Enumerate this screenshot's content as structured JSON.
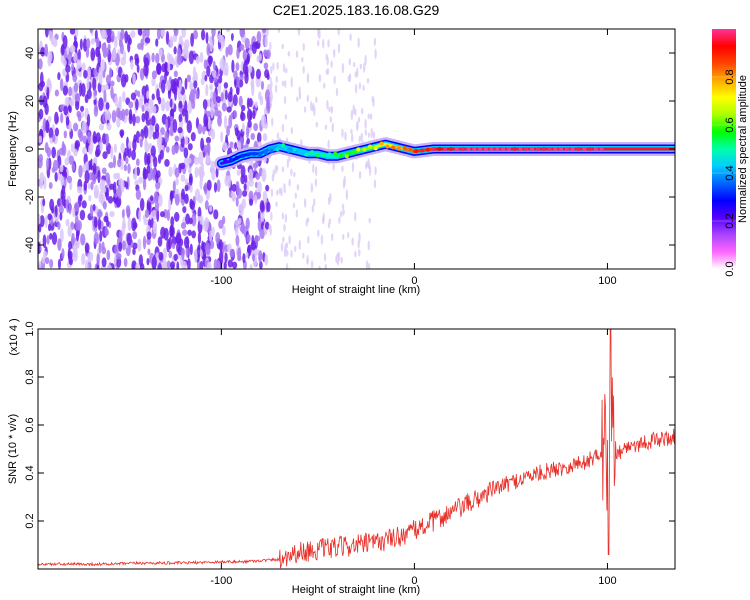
{
  "title": "C2E1.2025.183.16.08.G29",
  "chart_data": [
    {
      "type": "heatmap",
      "xlabel": "Height of straight line (km)",
      "ylabel": "Frequency (Hz)",
      "xlim": [
        -195,
        135
      ],
      "ylim": [
        -50,
        50
      ],
      "xticks": [
        -100,
        0,
        100
      ],
      "xtick_labels": [
        "-100",
        "0",
        "100"
      ],
      "yticks": [
        -40,
        -20,
        0,
        20,
        40
      ],
      "ytick_labels": [
        "-40",
        "-20",
        "0",
        "20",
        "40"
      ],
      "colorbar": {
        "label": "Normalized spectral amplitude",
        "range": [
          0,
          1
        ],
        "ticks": [
          0.0,
          0.2,
          0.4,
          0.6,
          0.8
        ],
        "tick_labels": [
          "0.0",
          "0.2",
          "0.4",
          "0.6",
          "0.8"
        ],
        "colors": [
          "#ffffff",
          "#ff66ff",
          "#aa44ff",
          "#5500ff",
          "#0000ff",
          "#0066ff",
          "#00ccff",
          "#00ffaa",
          "#00ff00",
          "#aaff00",
          "#ffff00",
          "#ffaa00",
          "#ff4400",
          "#ff0000",
          "#ff3399"
        ]
      },
      "grid": false,
      "signal_track": {
        "x": [
          -100,
          -95,
          -90,
          -85,
          -80,
          -75,
          -70,
          -65,
          -60,
          -55,
          -50,
          -45,
          -40,
          -35,
          -30,
          -25,
          -20,
          -15,
          -10,
          -5,
          0,
          10,
          20,
          40,
          60,
          80,
          100,
          135
        ],
        "frequency": [
          -6,
          -5,
          -3,
          -2,
          -2,
          0,
          1,
          0,
          -1,
          -2,
          -2,
          -3,
          -3,
          -2,
          -1,
          0,
          1,
          2,
          1,
          0,
          -1,
          0,
          0,
          0,
          0,
          0,
          0,
          0
        ],
        "amplitude": [
          0.2,
          0.25,
          0.3,
          0.3,
          0.35,
          0.35,
          0.45,
          0.4,
          0.4,
          0.45,
          0.5,
          0.45,
          0.5,
          0.55,
          0.6,
          0.6,
          0.65,
          0.7,
          0.75,
          0.8,
          0.85,
          0.9,
          0.95,
          0.95,
          0.95,
          0.95,
          0.95,
          0.95
        ]
      },
      "noise_region_x": [
        -195,
        -75
      ]
    },
    {
      "type": "line",
      "xlabel": "Height of straight line (km)",
      "ylabel": "SNR (10 * v/v)",
      "y_multiplier": "(x10 4 )",
      "xlim": [
        -195,
        135
      ],
      "ylim": [
        0,
        1.0
      ],
      "xticks": [
        -100,
        0,
        100
      ],
      "xtick_labels": [
        "-100",
        "0",
        "100"
      ],
      "yticks": [
        0.2,
        0.4,
        0.6,
        0.8,
        1.0
      ],
      "ytick_labels": [
        "0.2",
        "0.4",
        "0.6",
        "0.8",
        "1.0"
      ],
      "grid": false,
      "series": [
        {
          "color": "#e8302a",
          "x": [
            -195,
            -180,
            -160,
            -140,
            -120,
            -100,
            -90,
            -80,
            -70,
            -65,
            -60,
            -50,
            -40,
            -30,
            -20,
            -10,
            0,
            10,
            20,
            30,
            40,
            50,
            60,
            70,
            80,
            90,
            98,
            100,
            102,
            105,
            110,
            120,
            135
          ],
          "y": [
            0.02,
            0.02,
            0.02,
            0.025,
            0.025,
            0.03,
            0.03,
            0.035,
            0.04,
            0.06,
            0.07,
            0.08,
            0.09,
            0.1,
            0.11,
            0.13,
            0.16,
            0.2,
            0.24,
            0.28,
            0.33,
            0.36,
            0.39,
            0.41,
            0.43,
            0.45,
            0.5,
            0.45,
            0.6,
            0.48,
            0.51,
            0.53,
            0.55
          ]
        }
      ]
    }
  ]
}
